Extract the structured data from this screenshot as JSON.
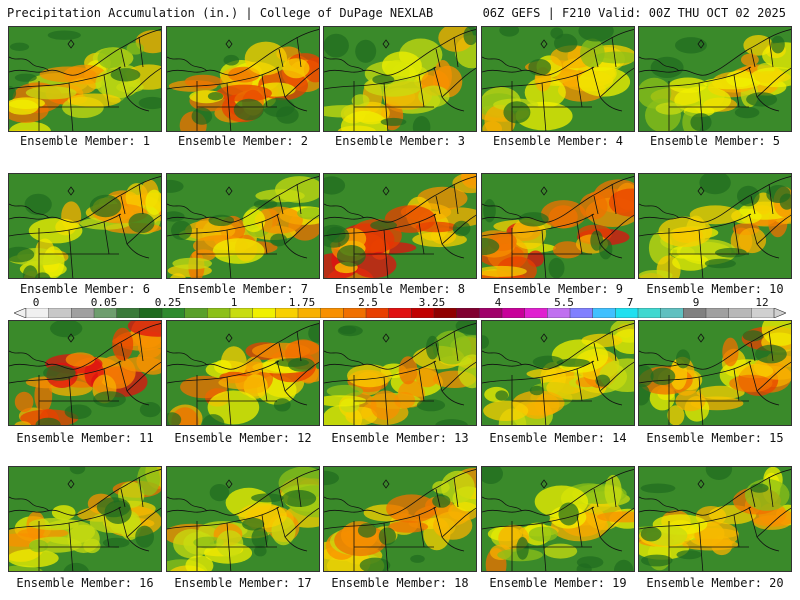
{
  "header": {
    "title": "Precipitation Accumulation (in.) | College of DuPage NEXLAB",
    "valid": "06Z GEFS | F210 Valid: 00Z THU OCT 02 2025"
  },
  "legend": {
    "labels": [
      "0",
      "0.05",
      "0.25",
      "1",
      "1.75",
      "2.5",
      "3.25",
      "4",
      "5.5",
      "7",
      "9",
      "12"
    ],
    "colors": [
      "#f0f0f0",
      "#c8c8c8",
      "#a0a0a0",
      "#6e9e6e",
      "#3a7a3a",
      "#1f6b1f",
      "#2e8b2e",
      "#5aa02a",
      "#8cc018",
      "#c8dc10",
      "#f0f000",
      "#f8d000",
      "#f8b000",
      "#f89000",
      "#f07000",
      "#e84000",
      "#e01010",
      "#c00000",
      "#900000",
      "#800030",
      "#a0006a",
      "#c8009a",
      "#e020d0",
      "#c070f0",
      "#8080ff",
      "#40c0ff",
      "#20e0f0",
      "#40d8d0",
      "#60c0c0",
      "#808080",
      "#a0a0a0",
      "#b8b8b8",
      "#d0d0d0"
    ]
  },
  "panels": [
    {
      "caption": "Ensemble Member: 1",
      "wet": 0.35
    },
    {
      "caption": "Ensemble Member: 2",
      "wet": 0.55
    },
    {
      "caption": "Ensemble Member: 3",
      "wet": 0.35
    },
    {
      "caption": "Ensemble Member: 4",
      "wet": 0.4
    },
    {
      "caption": "Ensemble Member: 5",
      "wet": 0.3
    },
    {
      "caption": "Ensemble Member: 6",
      "wet": 0.35
    },
    {
      "caption": "Ensemble Member: 7",
      "wet": 0.4
    },
    {
      "caption": "Ensemble Member: 8",
      "wet": 0.65
    },
    {
      "caption": "Ensemble Member: 9",
      "wet": 0.7
    },
    {
      "caption": "Ensemble Member: 10",
      "wet": 0.4
    },
    {
      "caption": "Ensemble Member: 11",
      "wet": 0.85
    },
    {
      "caption": "Ensemble Member: 12",
      "wet": 0.6
    },
    {
      "caption": "Ensemble Member: 13",
      "wet": 0.35
    },
    {
      "caption": "Ensemble Member: 14",
      "wet": 0.4
    },
    {
      "caption": "Ensemble Member: 15",
      "wet": 0.55
    },
    {
      "caption": "Ensemble Member: 16",
      "wet": 0.3
    },
    {
      "caption": "Ensemble Member: 17",
      "wet": 0.3
    },
    {
      "caption": "Ensemble Member: 18",
      "wet": 0.45
    },
    {
      "caption": "Ensemble Member: 19",
      "wet": 0.35
    },
    {
      "caption": "Ensemble Member: 20",
      "wet": 0.3
    }
  ]
}
